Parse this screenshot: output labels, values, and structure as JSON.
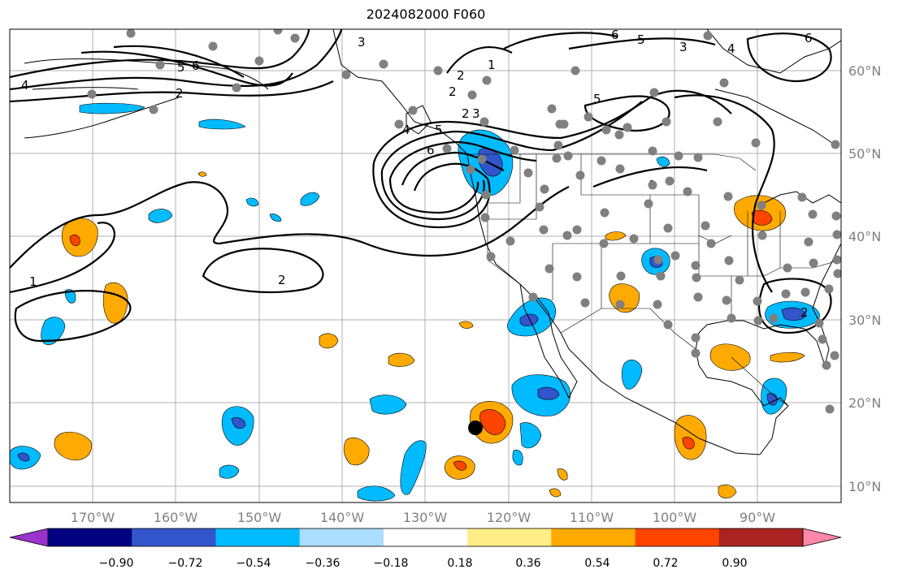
{
  "title": "2024082000 F060",
  "lon_ticks": [
    "170°W",
    "160°W",
    "150°W",
    "140°W",
    "130°W",
    "120°W",
    "110°W",
    "100°W",
    "90°W"
  ],
  "lat_ticks": [
    "60°N",
    "50°N",
    "40°N",
    "30°N",
    "20°N",
    "10°N"
  ],
  "colorbar": {
    "ticks": [
      "−0.90",
      "−0.72",
      "−0.54",
      "−0.36",
      "−0.18",
      "0.18",
      "0.36",
      "0.54",
      "0.72",
      "0.90"
    ],
    "colors": [
      "#9933cc",
      "#000080",
      "#3355cc",
      "#00bbff",
      "#aaddff",
      "#ffffff",
      "#ffee88",
      "#ffaa00",
      "#ff4400",
      "#aa2222",
      "#ff88aa"
    ]
  },
  "contour_labels": [
    "4",
    "5",
    "6",
    "3",
    "2",
    "2",
    "3",
    "6",
    "5",
    "4",
    "5",
    "3",
    "1",
    "2",
    "1",
    "2",
    "6",
    "5",
    "4",
    "6",
    "2",
    "1",
    "2"
  ],
  "map": {
    "lon_range": [
      -180,
      -80
    ],
    "lat_range": [
      7,
      64
    ],
    "marker_black_dot": {
      "lon": -124.5,
      "lat": 17
    }
  }
}
